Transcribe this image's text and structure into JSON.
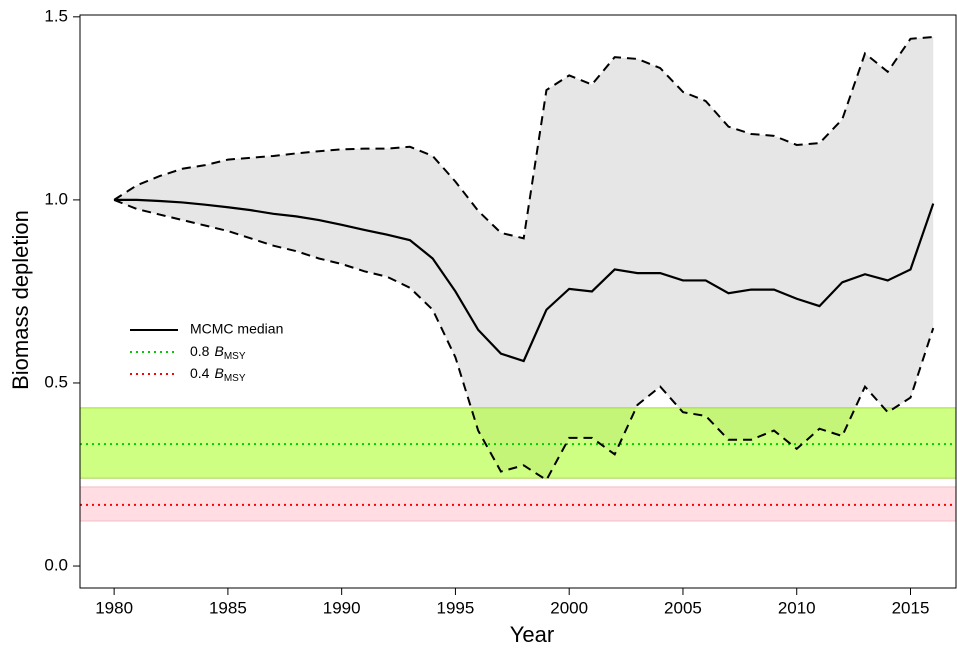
{
  "chart_data": {
    "type": "line",
    "x_label": "Year",
    "y_label": "Biomass depletion",
    "x": [
      1980,
      1981,
      1982,
      1983,
      1984,
      1985,
      1986,
      1987,
      1988,
      1989,
      1990,
      1991,
      1992,
      1993,
      1994,
      1995,
      1996,
      1997,
      1998,
      1999,
      2000,
      2001,
      2002,
      2003,
      2004,
      2005,
      2006,
      2007,
      2008,
      2009,
      2010,
      2011,
      2012,
      2013,
      2014,
      2015,
      2016
    ],
    "series": [
      {
        "name": "MCMC median",
        "color": "#000000",
        "values": [
          1.0,
          1.0,
          0.997,
          0.993,
          0.987,
          0.98,
          0.972,
          0.962,
          0.955,
          0.945,
          0.932,
          0.918,
          0.905,
          0.89,
          0.84,
          0.75,
          0.645,
          0.58,
          0.56,
          0.7,
          0.757,
          0.75,
          0.81,
          0.8,
          0.8,
          0.78,
          0.78,
          0.745,
          0.755,
          0.755,
          0.73,
          0.71,
          0.775,
          0.797,
          0.78,
          0.81,
          0.99
        ]
      }
    ],
    "interval": {
      "color": "#000000",
      "fill": "#e6e6e6",
      "upper": [
        1.0,
        1.04,
        1.065,
        1.085,
        1.095,
        1.11,
        1.115,
        1.12,
        1.127,
        1.133,
        1.138,
        1.14,
        1.14,
        1.145,
        1.12,
        1.05,
        0.97,
        0.91,
        0.895,
        1.3,
        1.34,
        1.315,
        1.39,
        1.385,
        1.36,
        1.295,
        1.27,
        1.2,
        1.18,
        1.175,
        1.15,
        1.155,
        1.22,
        1.4,
        1.35,
        1.44,
        1.445
      ],
      "lower": [
        1.0,
        0.975,
        0.96,
        0.945,
        0.93,
        0.915,
        0.895,
        0.875,
        0.86,
        0.84,
        0.825,
        0.805,
        0.79,
        0.76,
        0.7,
        0.57,
        0.37,
        0.258,
        0.275,
        0.235,
        0.35,
        0.35,
        0.305,
        0.44,
        0.49,
        0.42,
        0.41,
        0.345,
        0.345,
        0.37,
        0.32,
        0.375,
        0.355,
        0.49,
        0.42,
        0.46,
        0.65
      ]
    },
    "reference_lines": [
      {
        "label": "0.8",
        "symbol": "B",
        "subscript": "MSY",
        "value": 0.333,
        "band": [
          0.24,
          0.432
        ],
        "color": "#00cc00",
        "band_color": "#adff2f"
      },
      {
        "label": "0.4",
        "symbol": "B",
        "subscript": "MSY",
        "value": 0.167,
        "band": [
          0.123,
          0.216
        ],
        "color": "#ff0000",
        "band_color": "#ffdde3"
      }
    ],
    "xlim": [
      1978.5,
      2017
    ],
    "ylim": [
      -0.06,
      1.505
    ],
    "xticks": [
      1980,
      1985,
      1990,
      1995,
      2000,
      2005,
      2010,
      2015
    ],
    "yticks": [
      {
        "value": 0,
        "label": "0.0"
      },
      0.5,
      {
        "value": 1,
        "label": "1.0"
      },
      1.5
    ]
  }
}
